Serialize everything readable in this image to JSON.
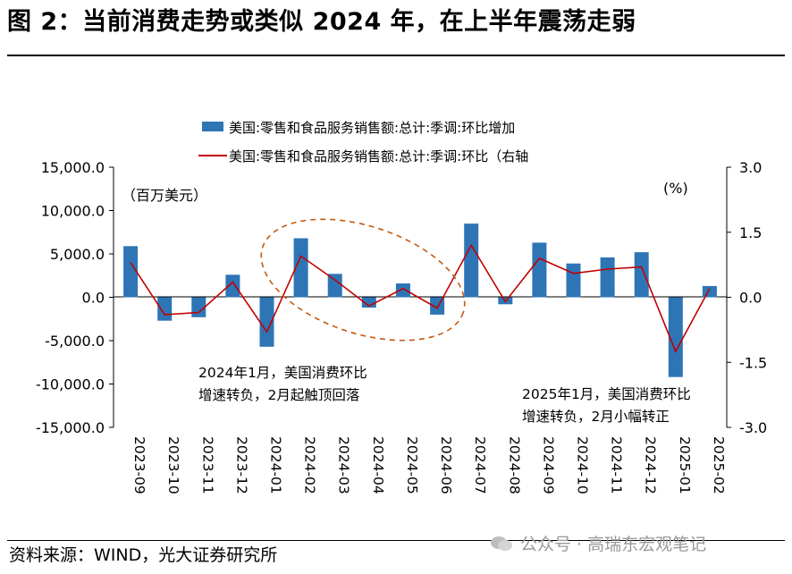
{
  "title": "图 2：当前消费走势或类似 2024 年，在上半年震荡走弱",
  "source": "资料来源：WIND，光大证券研究所",
  "watermark": "公众号 · 高瑞东宏观笔记",
  "colors": {
    "bar": "#2e75b6",
    "line": "#c00000",
    "annotation": "#c55a11"
  },
  "chart_data": {
    "type": "bar",
    "categories": [
      "2023-09",
      "2023-10",
      "2023-11",
      "2023-12",
      "2024-01",
      "2024-02",
      "2024-03",
      "2024-04",
      "2024-05",
      "2024-06",
      "2024-07",
      "2024-08",
      "2024-09",
      "2024-10",
      "2024-11",
      "2024-12",
      "2025-01",
      "2025-02"
    ],
    "series": [
      {
        "name": "美国:零售和食品服务销售额:总计:季调:环比增加",
        "type": "bar",
        "axis": "left",
        "values": [
          5900,
          -2700,
          -2300,
          2600,
          -5700,
          6800,
          2700,
          -1200,
          1600,
          -2000,
          8500,
          -800,
          6300,
          3900,
          4600,
          5200,
          -9200,
          1300
        ]
      },
      {
        "name": "美国:零售和食品服务销售额:总计:季调:环比（右轴",
        "type": "line",
        "axis": "right",
        "values": [
          0.8,
          -0.4,
          -0.35,
          0.35,
          -0.8,
          0.95,
          0.4,
          -0.2,
          0.2,
          -0.25,
          1.2,
          -0.1,
          0.9,
          0.55,
          0.65,
          0.7,
          -1.25,
          0.2
        ]
      }
    ],
    "left_axis": {
      "unit": "（百万美元）",
      "min": -15000,
      "max": 15000,
      "ticks": [
        "15,000.0",
        "10,000.0",
        "5,000.0",
        "0.0",
        "-5,000.0",
        "-10,000.0",
        "-15,000.0"
      ]
    },
    "right_axis": {
      "unit": "(%)",
      "min": -3.0,
      "max": 3.0,
      "ticks": [
        "3.0",
        "1.5",
        "0.0",
        "-1.5",
        "-3.0"
      ]
    },
    "annotations": [
      {
        "lines": [
          "2024年1月，美国消费环比",
          "增速转负，2月起触顶回落"
        ]
      },
      {
        "lines": [
          "2025年1月，美国消费环比",
          "增速转负，2月小幅转正"
        ]
      }
    ]
  }
}
